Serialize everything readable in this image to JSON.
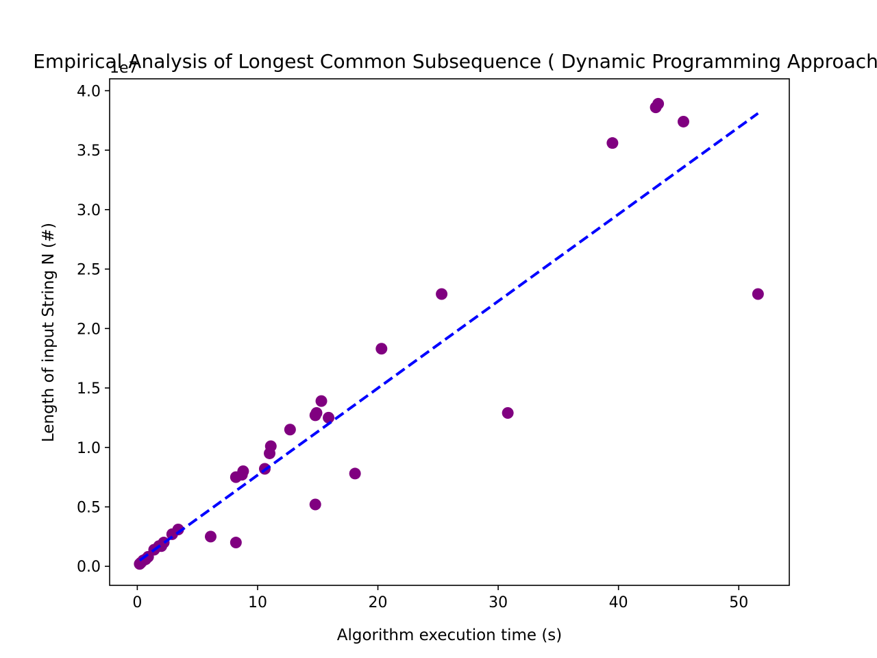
{
  "chart_data": {
    "type": "scatter",
    "title": "Empirical Analysis of Longest Common Subsequence ( Dynamic Programming Approach )",
    "xlabel": "Algorithm execution time (s)",
    "ylabel": "Length of input String N (#)",
    "y_offset_label": "1e7",
    "xlim": [
      -2.3,
      54.2
    ],
    "ylim": [
      -0.16,
      4.1
    ],
    "x_ticks": [
      0,
      10,
      20,
      30,
      40,
      50
    ],
    "x_tick_labels": [
      "0",
      "10",
      "20",
      "30",
      "40",
      "50"
    ],
    "y_ticks": [
      0,
      0.5,
      1.0,
      1.5,
      2.0,
      2.5,
      3.0,
      3.5,
      4.0
    ],
    "y_tick_labels": [
      "0.0",
      "0.5",
      "1.0",
      "1.5",
      "2.0",
      "2.5",
      "3.0",
      "3.5",
      "4.0"
    ],
    "y_multiplier": "1e7",
    "point_color": "#800080",
    "trend_color": "#0000ff",
    "grid": false,
    "points": [
      {
        "x": 0.2,
        "y": 0.02
      },
      {
        "x": 0.3,
        "y": 0.03
      },
      {
        "x": 0.5,
        "y": 0.05
      },
      {
        "x": 0.7,
        "y": 0.06
      },
      {
        "x": 0.9,
        "y": 0.08
      },
      {
        "x": 1.4,
        "y": 0.14
      },
      {
        "x": 1.8,
        "y": 0.17
      },
      {
        "x": 2.0,
        "y": 0.17
      },
      {
        "x": 2.2,
        "y": 0.2
      },
      {
        "x": 2.9,
        "y": 0.27
      },
      {
        "x": 3.4,
        "y": 0.31
      },
      {
        "x": 6.1,
        "y": 0.25
      },
      {
        "x": 8.2,
        "y": 0.2
      },
      {
        "x": 8.2,
        "y": 0.75
      },
      {
        "x": 8.7,
        "y": 0.77
      },
      {
        "x": 8.8,
        "y": 0.8
      },
      {
        "x": 10.6,
        "y": 0.82
      },
      {
        "x": 11.0,
        "y": 0.95
      },
      {
        "x": 11.1,
        "y": 1.01
      },
      {
        "x": 12.7,
        "y": 1.15
      },
      {
        "x": 14.8,
        "y": 0.52
      },
      {
        "x": 14.8,
        "y": 1.27
      },
      {
        "x": 14.9,
        "y": 1.29
      },
      {
        "x": 15.3,
        "y": 1.39
      },
      {
        "x": 15.9,
        "y": 1.25
      },
      {
        "x": 18.1,
        "y": 0.78
      },
      {
        "x": 20.3,
        "y": 1.83
      },
      {
        "x": 25.3,
        "y": 2.29
      },
      {
        "x": 30.8,
        "y": 1.29
      },
      {
        "x": 39.5,
        "y": 3.56
      },
      {
        "x": 43.1,
        "y": 3.86
      },
      {
        "x": 43.3,
        "y": 3.89
      },
      {
        "x": 45.4,
        "y": 3.74
      },
      {
        "x": 51.6,
        "y": 2.29
      }
    ],
    "trend_line": {
      "x": [
        0.2,
        51.6
      ],
      "y": [
        0.05,
        3.81
      ]
    }
  }
}
